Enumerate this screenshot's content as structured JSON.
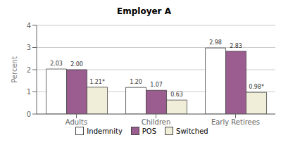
{
  "chart_data": {
    "type": "bar",
    "title": "Employer A",
    "ylabel": "Percent",
    "categories": [
      "Adults",
      "Children",
      "Early Retirees"
    ],
    "series": [
      {
        "name": "Indemnity",
        "color": "#FFFFFF",
        "values": [
          2.03,
          1.2,
          2.98
        ],
        "value_labels": [
          "2.03",
          "1.20",
          "2.98"
        ]
      },
      {
        "name": "POS",
        "color": "#9B5C8F",
        "values": [
          2.0,
          1.07,
          2.83
        ],
        "value_labels": [
          "2.00",
          "1.07",
          "2.83"
        ]
      },
      {
        "name": "Switched",
        "color": "#F0EED8",
        "values": [
          1.21,
          0.63,
          0.98
        ],
        "value_labels": [
          "1.21*",
          "0.63",
          "0.98*"
        ]
      }
    ],
    "ylim": [
      0,
      4
    ],
    "yticks": [
      0,
      1,
      2,
      3,
      4
    ],
    "grid": true,
    "legend": "bottom",
    "data_labels": true
  }
}
